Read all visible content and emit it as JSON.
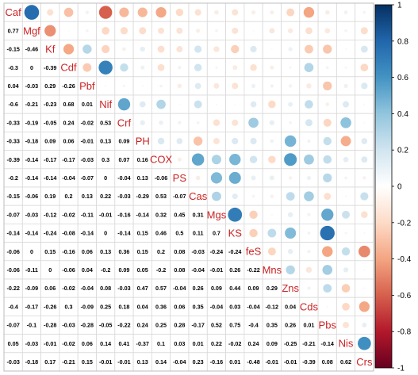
{
  "chart_data": {
    "type": "heatmap",
    "layout": "mixed-correlogram",
    "lower": "number",
    "upper": "circle",
    "variables": [
      "Caf",
      "Mgf",
      "Kf",
      "Cdf",
      "Pbf",
      "Nif",
      "Crf",
      "PH",
      "COX",
      "PS",
      "Cas",
      "Mgs",
      "KS",
      "feS",
      "Mns",
      "Zns",
      "Cds",
      "Pbs",
      "Nis",
      "Crs"
    ],
    "matrix": [
      [
        1,
        0.77,
        -0.15,
        -0.3,
        0.04,
        -0.6,
        -0.33,
        -0.33,
        -0.39,
        -0.2,
        -0.15,
        -0.07,
        -0.14,
        -0.06,
        -0.06,
        -0.22,
        -0.4,
        -0.07,
        0.05,
        -0.03
      ],
      [
        0.77,
        1,
        -0.46,
        0,
        -0.03,
        -0.21,
        -0.19,
        -0.18,
        -0.14,
        -0.14,
        -0.06,
        -0.03,
        -0.14,
        0,
        -0.11,
        -0.09,
        -0.17,
        -0.1,
        -0.03,
        -0.18
      ],
      [
        -0.15,
        -0.46,
        1,
        -0.39,
        0.29,
        -0.23,
        -0.05,
        0.09,
        -0.17,
        -0.14,
        0.19,
        -0.12,
        -0.24,
        0.15,
        0,
        0.06,
        -0.26,
        -0.28,
        -0.01,
        0.17
      ],
      [
        -0.3,
        0,
        -0.39,
        1,
        -0.26,
        0.68,
        0.24,
        0.06,
        -0.17,
        -0.04,
        0.2,
        -0.02,
        -0.08,
        -0.16,
        -0.06,
        -0.02,
        0.3,
        -0.03,
        -0.02,
        -0.21
      ],
      [
        0.04,
        -0.03,
        0.29,
        -0.26,
        1,
        0.01,
        -0.02,
        -0.01,
        -0.03,
        -0.07,
        0.13,
        -0.11,
        -0.14,
        0.06,
        0.04,
        -0.04,
        -0.09,
        -0.28,
        0.06,
        0.15
      ],
      [
        -0.6,
        -0.21,
        -0.23,
        0.68,
        0.01,
        1,
        0.53,
        0.13,
        0.3,
        0,
        0.22,
        -0.01,
        0,
        0.13,
        -0.2,
        0.08,
        0.25,
        -0.05,
        0.14,
        -0.01
      ],
      [
        -0.33,
        -0.19,
        -0.05,
        0.24,
        -0.02,
        0.53,
        1,
        0.09,
        0.07,
        -0.04,
        -0.03,
        -0.16,
        -0.14,
        0.36,
        0.09,
        -0.03,
        0.18,
        -0.22,
        0.41,
        -0.01
      ],
      [
        -0.33,
        -0.18,
        0.09,
        0.06,
        -0.01,
        0.13,
        0.09,
        1,
        0.16,
        0.13,
        -0.29,
        -0.14,
        0.15,
        0.15,
        0.05,
        0.47,
        0.04,
        0.24,
        -0.37,
        0.13
      ],
      [
        -0.39,
        -0.14,
        -0.17,
        -0.17,
        -0.03,
        0.3,
        0.07,
        0.16,
        1,
        -0.06,
        0.53,
        0.32,
        0.46,
        0.2,
        -0.2,
        0.57,
        0.36,
        0.25,
        0.1,
        0.14
      ],
      [
        -0.2,
        -0.14,
        -0.14,
        -0.04,
        -0.07,
        0,
        -0.04,
        0.13,
        -0.06,
        1,
        -0.07,
        0.45,
        0.5,
        0.08,
        0.08,
        -0.04,
        0.06,
        0.28,
        0.03,
        -0.04
      ],
      [
        -0.15,
        -0.06,
        0.19,
        0.2,
        0.13,
        0.22,
        -0.03,
        -0.29,
        0.53,
        -0.07,
        1,
        0.31,
        0.11,
        -0.03,
        -0.04,
        0.26,
        0.35,
        -0.17,
        0.01,
        0.23
      ],
      [
        -0.07,
        -0.03,
        -0.12,
        -0.02,
        -0.11,
        -0.01,
        -0.16,
        -0.14,
        0.32,
        0.45,
        0.31,
        1,
        0.7,
        -0.24,
        -0.01,
        0.09,
        -0.04,
        0.52,
        0.22,
        -0.16
      ],
      [
        -0.14,
        -0.14,
        -0.24,
        -0.08,
        -0.14,
        0,
        -0.14,
        0.15,
        0.46,
        0.5,
        0.11,
        0.7,
        1,
        -0.24,
        0.26,
        0.44,
        0.03,
        0.75,
        -0.02,
        0.01
      ],
      [
        -0.06,
        0,
        0.15,
        -0.16,
        0.06,
        0.13,
        0.36,
        0.15,
        0.2,
        0.08,
        -0.03,
        -0.24,
        -0.24,
        1,
        -0.22,
        0.09,
        -0.04,
        -0.4,
        0.24,
        -0.48
      ],
      [
        -0.06,
        -0.11,
        0,
        -0.06,
        0.04,
        -0.2,
        0.09,
        0.05,
        -0.2,
        0.08,
        -0.04,
        -0.01,
        0.26,
        -0.22,
        1,
        0.29,
        -0.12,
        0.35,
        0.09,
        -0.01
      ],
      [
        -0.22,
        -0.09,
        0.06,
        -0.02,
        -0.04,
        0.08,
        -0.03,
        0.47,
        0.57,
        -0.04,
        0.26,
        0.09,
        0.44,
        0.09,
        0.29,
        1,
        0.04,
        0.26,
        -0.25,
        -0.01
      ],
      [
        -0.4,
        -0.17,
        -0.26,
        0.3,
        -0.09,
        0.25,
        0.18,
        0.04,
        0.36,
        0.06,
        0.35,
        -0.04,
        0.03,
        -0.04,
        -0.12,
        0.04,
        1,
        0.01,
        -0.21,
        -0.39
      ],
      [
        -0.07,
        -0.1,
        -0.28,
        -0.03,
        -0.28,
        -0.05,
        -0.22,
        0.24,
        0.25,
        0.28,
        -0.17,
        0.52,
        0.75,
        -0.4,
        0.35,
        0.26,
        0.01,
        1,
        -0.14,
        0.08
      ],
      [
        0.05,
        -0.03,
        -0.01,
        -0.02,
        0.06,
        0.14,
        0.41,
        -0.37,
        0.1,
        0.03,
        0.01,
        0.22,
        -0.02,
        0.24,
        0.09,
        -0.25,
        -0.21,
        -0.14,
        1,
        0.62
      ],
      [
        -0.03,
        -0.18,
        0.17,
        -0.21,
        0.15,
        -0.01,
        -0.01,
        0.13,
        0.14,
        -0.04,
        0.23,
        -0.16,
        0.01,
        -0.48,
        -0.01,
        -0.01,
        -0.39,
        0.08,
        0.62,
        1
      ]
    ],
    "colorbar": {
      "min": -1,
      "max": 1,
      "ticks": [
        1,
        0.8,
        0.6,
        0.4,
        0.2,
        0,
        -0.2,
        -0.4,
        -0.6,
        -0.8,
        -1
      ]
    },
    "colors": {
      "positive": "#053061",
      "neutral": "#f7f7f7",
      "negative": "#67001f",
      "label": "#cc2222"
    },
    "grid": true
  }
}
